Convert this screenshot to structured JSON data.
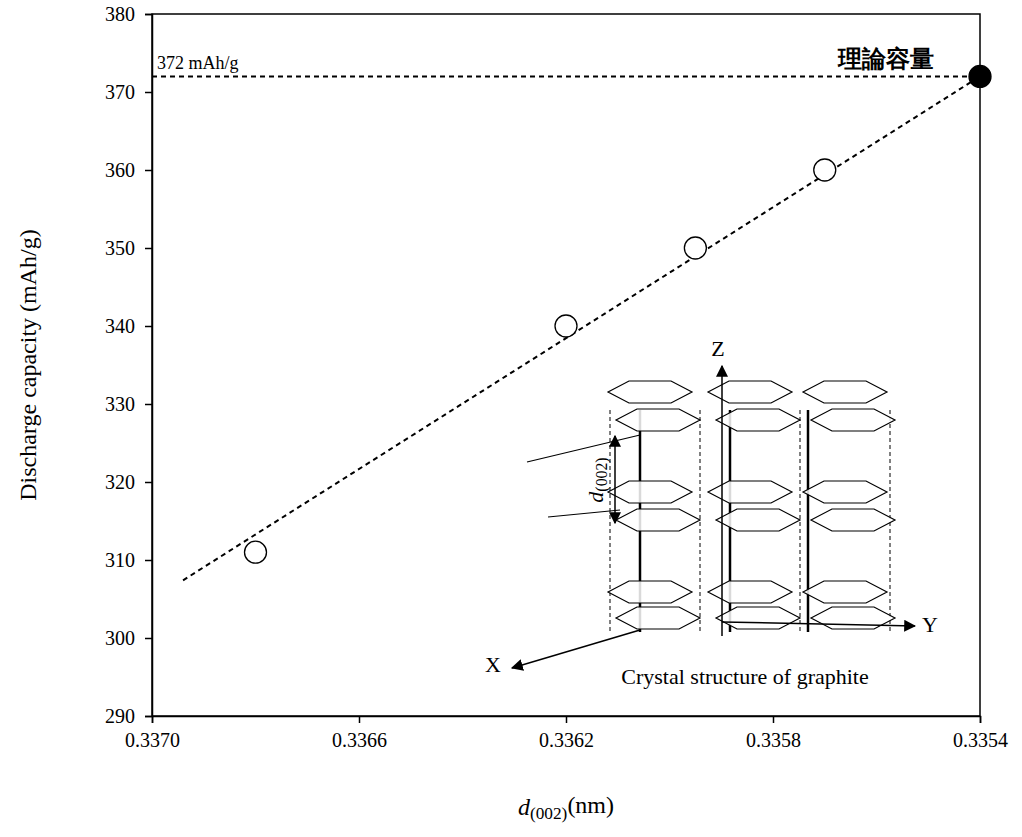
{
  "chart_data": {
    "type": "scatter",
    "x_label": "d(002)(nm)",
    "y_label": "Discharge capacity (mAh/g)",
    "xlim": [
      0.337,
      0.3354
    ],
    "ylim": [
      290,
      380
    ],
    "xticks": [
      {
        "value": 0.337,
        "label": "0.3370"
      },
      {
        "value": 0.3366,
        "label": "0.3366"
      },
      {
        "value": 0.3362,
        "label": "0.3362"
      },
      {
        "value": 0.3358,
        "label": "0.3358"
      },
      {
        "value": 0.3354,
        "label": "0.3354"
      }
    ],
    "yticks": [
      290,
      300,
      310,
      320,
      330,
      340,
      350,
      360,
      370,
      380
    ],
    "grid": false,
    "series": [
      {
        "type": "line",
        "line_style": "dashed",
        "color": "#000000",
        "x": [
          0.337,
          0.3354
        ],
        "values": [
          372,
          372
        ]
      },
      {
        "type": "line",
        "line_style": "dashed",
        "color": "#000000",
        "x": [
          0.33694,
          0.3354
        ],
        "values": [
          307.4,
          372
        ]
      },
      {
        "type": "scatter",
        "marker": "open-circle",
        "color": "#000000",
        "x": [
          0.3368,
          0.3362,
          0.33595,
          0.3357
        ],
        "values": [
          311,
          340,
          350,
          360
        ]
      },
      {
        "type": "scatter",
        "marker": "filled-circle",
        "color": "#000000",
        "x": [
          0.3354
        ],
        "values": [
          372
        ]
      }
    ],
    "annotations": [
      {
        "text": "372 mAh/g",
        "x": 0.337,
        "y": 372
      },
      {
        "text": "理論容量",
        "x": 0.3354,
        "y": 372
      }
    ],
    "inset": {
      "title": "Crystal structure of graphite",
      "axis_labels": [
        "X",
        "Y",
        "Z"
      ],
      "spacing_label": "d(002)"
    }
  }
}
